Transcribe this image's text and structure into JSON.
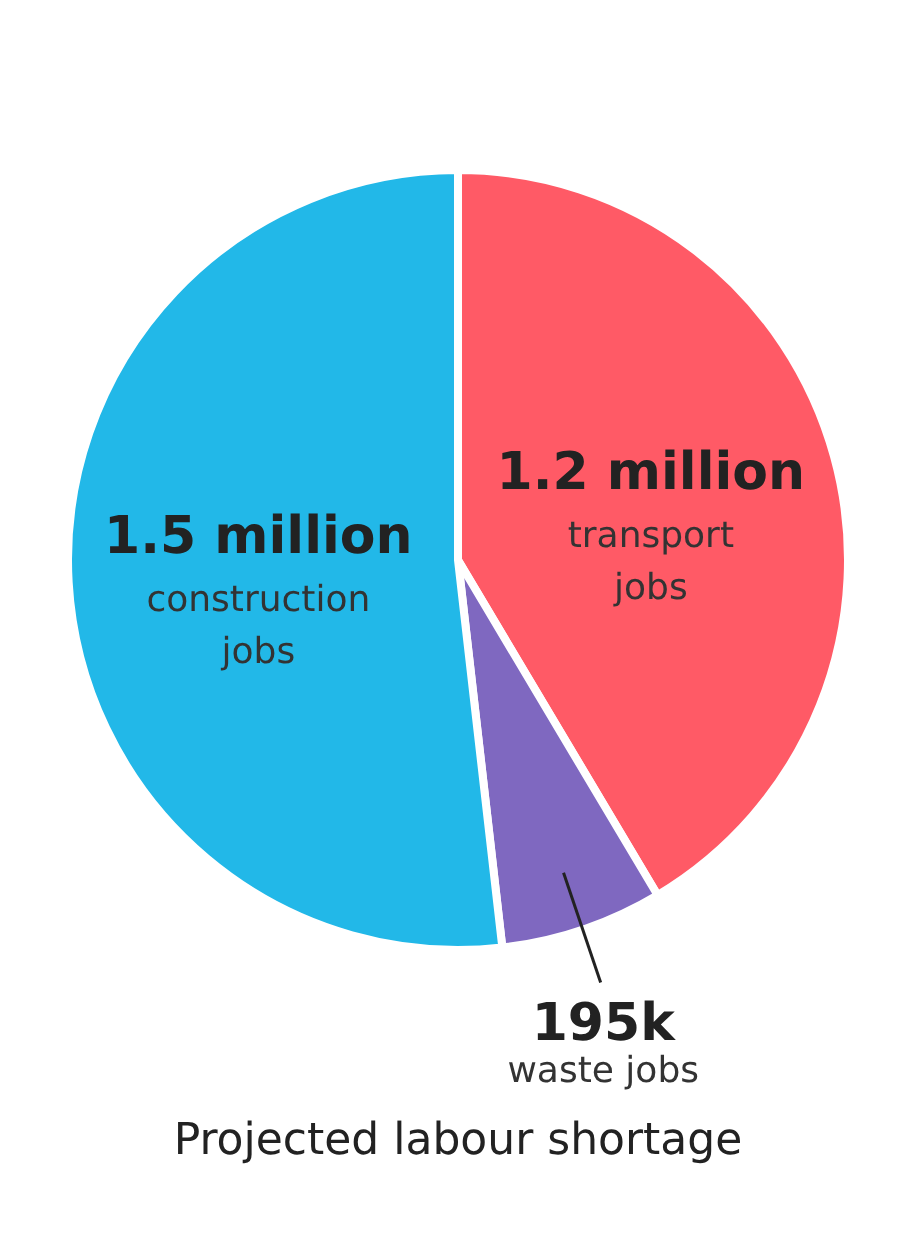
{
  "chart_data": {
    "type": "pie",
    "title": "Projected labour shortage",
    "categories": [
      "transport jobs",
      "waste jobs",
      "construction jobs"
    ],
    "values": [
      1200000,
      195000,
      1500000
    ],
    "value_labels": [
      "1.2 million",
      "195k",
      "1.5 million"
    ],
    "colors": [
      "#ff5a66",
      "#7f68c0",
      "#22b8e8"
    ],
    "legend": false
  }
}
